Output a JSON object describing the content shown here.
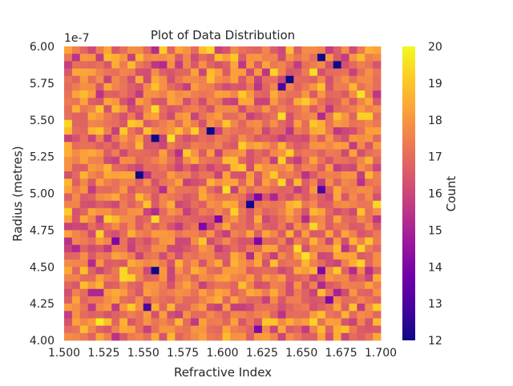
{
  "chart_data": {
    "type": "heatmap",
    "title": "Plot of Data Distribution",
    "xlabel": "Refractive Index",
    "ylabel": "Radius (metres)",
    "y_offset_label": "1e-7",
    "xlim": [
      1.5,
      1.7
    ],
    "ylim": [
      4e-07,
      6e-07
    ],
    "x_ticks": [
      {
        "value": 1.5,
        "label": "1.500"
      },
      {
        "value": 1.525,
        "label": "1.525"
      },
      {
        "value": 1.55,
        "label": "1.550"
      },
      {
        "value": 1.575,
        "label": "1.575"
      },
      {
        "value": 1.6,
        "label": "1.600"
      },
      {
        "value": 1.625,
        "label": "1.625"
      },
      {
        "value": 1.65,
        "label": "1.650"
      },
      {
        "value": 1.675,
        "label": "1.675"
      },
      {
        "value": 1.7,
        "label": "1.700"
      }
    ],
    "y_ticks": [
      {
        "value": 4.0,
        "label": "4.00"
      },
      {
        "value": 4.25,
        "label": "4.25"
      },
      {
        "value": 4.5,
        "label": "4.50"
      },
      {
        "value": 4.75,
        "label": "4.75"
      },
      {
        "value": 5.0,
        "label": "5.00"
      },
      {
        "value": 5.25,
        "label": "5.25"
      },
      {
        "value": 5.5,
        "label": "5.50"
      },
      {
        "value": 5.75,
        "label": "5.75"
      },
      {
        "value": 6.0,
        "label": "6.00"
      }
    ],
    "colorbar": {
      "label": "Count",
      "range": [
        12,
        20
      ],
      "colormap": "plasma",
      "ticks": [
        "12",
        "13",
        "14",
        "15",
        "16",
        "17",
        "18",
        "19",
        "20"
      ]
    },
    "bins_x": 40,
    "bins_y": 40,
    "grid": false,
    "colormap_stops": [
      "#0d0887",
      "#46039f",
      "#7201a8",
      "#9c179e",
      "#bd3786",
      "#d8576b",
      "#ed7953",
      "#fb9f3a",
      "#fdca26",
      "#f0f921"
    ],
    "highlight_cells": [
      {
        "col": 32,
        "row": 1,
        "count": 12
      },
      {
        "col": 34,
        "row": 2,
        "count": 12
      },
      {
        "col": 28,
        "row": 4,
        "count": 12
      },
      {
        "col": 27,
        "row": 5,
        "count": 13
      },
      {
        "col": 11,
        "row": 12,
        "count": 12
      },
      {
        "col": 18,
        "row": 11,
        "count": 12
      },
      {
        "col": 9,
        "row": 17,
        "count": 12
      },
      {
        "col": 23,
        "row": 21,
        "count": 12
      },
      {
        "col": 24,
        "row": 20,
        "count": 14
      },
      {
        "col": 32,
        "row": 19,
        "count": 13
      },
      {
        "col": 19,
        "row": 23,
        "count": 14
      },
      {
        "col": 17,
        "row": 24,
        "count": 14
      },
      {
        "col": 11,
        "row": 30,
        "count": 12
      },
      {
        "col": 6,
        "row": 26,
        "count": 14
      },
      {
        "col": 24,
        "row": 26,
        "count": 14
      },
      {
        "col": 32,
        "row": 30,
        "count": 14
      },
      {
        "col": 10,
        "row": 35,
        "count": 13
      },
      {
        "col": 24,
        "row": 38,
        "count": 14
      },
      {
        "col": 20,
        "row": 40,
        "count": 14
      },
      {
        "col": 14,
        "row": 42,
        "count": 14
      },
      {
        "col": 22,
        "row": 43,
        "count": 13
      },
      {
        "col": 22,
        "row": 45,
        "count": 14
      },
      {
        "col": 32,
        "row": 47,
        "count": 14
      },
      {
        "col": 33,
        "row": 34,
        "count": 14
      }
    ]
  }
}
